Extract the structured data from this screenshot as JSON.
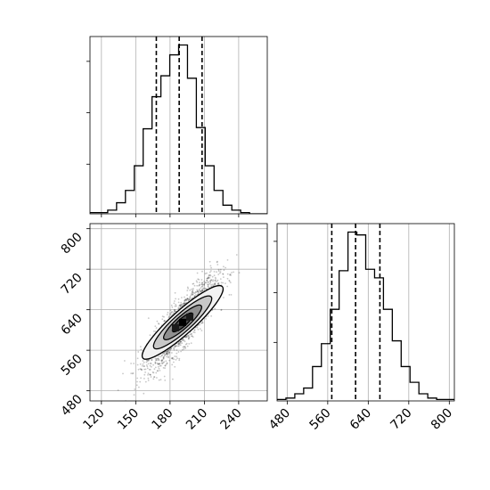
{
  "chart_data": {
    "type": "corner",
    "title": "",
    "grid": true,
    "parameters": [
      "",
      ""
    ],
    "x_param": {
      "name": "",
      "range": [
        110,
        265
      ],
      "ticks": [
        120,
        150,
        180,
        210,
        240
      ],
      "tick_labels": [
        "120",
        "150",
        "180",
        "210",
        "240"
      ]
    },
    "y_param": {
      "name": "",
      "range": [
        460,
        810
      ],
      "ticks": [
        480,
        560,
        640,
        720,
        800
      ],
      "tick_labels": [
        "480",
        "560",
        "640",
        "720",
        "800"
      ]
    },
    "hist_x": {
      "type": "histogram",
      "bin_edges": [
        110,
        117.75,
        125.5,
        133.25,
        141,
        148.75,
        156.5,
        164.25,
        172,
        179.75,
        187.5,
        195.25,
        203,
        210.75,
        218.5,
        226.25,
        234,
        241.75,
        249.5,
        257.25,
        265
      ],
      "counts": [
        0.5,
        0.5,
        1.5,
        4.5,
        9.5,
        19.5,
        34.5,
        47.5,
        56,
        64.5,
        68.5,
        55,
        35,
        19.5,
        9.5,
        3.5,
        1.5,
        0.5,
        0,
        0
      ],
      "quantiles": [
        168,
        188,
        208
      ]
    },
    "hist_y": {
      "type": "histogram",
      "bin_edges": [
        460,
        477.5,
        495,
        512.5,
        530,
        547.5,
        565,
        582.5,
        600,
        617.5,
        635,
        652.5,
        670,
        687.5,
        705,
        722.5,
        740,
        757.5,
        775,
        792.5,
        810
      ],
      "counts": [
        0.5,
        1,
        2.5,
        4.5,
        12,
        20,
        32,
        45.5,
        59,
        58,
        46,
        43,
        32,
        21,
        12,
        6.5,
        2.5,
        1,
        0.5,
        0.5
      ],
      "quantiles": [
        568,
        615,
        663
      ]
    },
    "scatter_2d": {
      "type": "scatter",
      "mean": [
        191,
        615
      ],
      "std": [
        15,
        43
      ],
      "correlation": 0.85,
      "contour_levels": [
        0.5,
        1.0,
        1.5,
        2.0
      ]
    }
  }
}
